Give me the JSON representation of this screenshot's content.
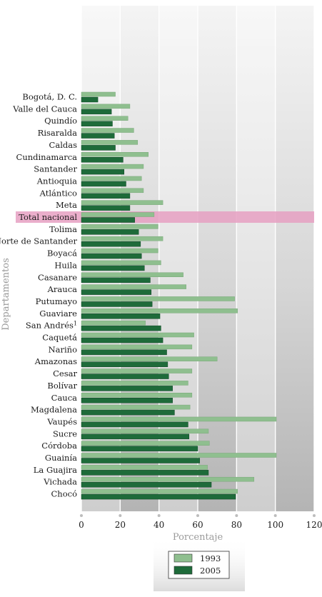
{
  "chart_data": {
    "type": "bar",
    "orientation": "horizontal",
    "categories": [
      "Bogotá, D. C.",
      "Valle del Cauca",
      "Quindío",
      "Risaralda",
      "Caldas",
      "Cundinamarca",
      "Santander",
      "Antioquia",
      "Atlántico",
      "Meta",
      "Total nacional",
      "Tolima",
      "Norte de Santander",
      "Boyacá",
      "Huila",
      "Casanare",
      "Arauca",
      "Putumayo",
      "Guaviare",
      "San Andrés",
      "Caquetá",
      "Nariño",
      "Amazonas",
      "Cesar",
      "Bolívar",
      "Cauca",
      "Magdalena",
      "Vaupés",
      "Sucre",
      "Córdoba",
      "Guainía",
      "La Guajira",
      "Vichada",
      "Chocó"
    ],
    "category_superscripts": {
      "San Andrés": "1"
    },
    "highlight_category": "Total nacional",
    "series": [
      {
        "name": "1993",
        "color": "#8fbf8f",
        "values": [
          17.5,
          25,
          24,
          27,
          29,
          34.5,
          32,
          31,
          32,
          42,
          37.5,
          39.5,
          42,
          39.5,
          41,
          52.5,
          54,
          79,
          80.5,
          33,
          58,
          57,
          70,
          57,
          55,
          57,
          56,
          100.5,
          65.5,
          66,
          100.5,
          65,
          89,
          80.5
        ]
      },
      {
        "name": "2005",
        "color": "#1e6b3a",
        "values": [
          8.5,
          15.5,
          16,
          17,
          17.5,
          21.5,
          22,
          23,
          25,
          25,
          27.5,
          29.5,
          30.5,
          31,
          32.5,
          35.5,
          36,
          36.5,
          40.5,
          41,
          42,
          44,
          44.5,
          45,
          47,
          47,
          48,
          55,
          55.5,
          60,
          61,
          65.5,
          67,
          79.5
        ]
      }
    ],
    "x_ticks": [
      "0",
      "20",
      "40",
      "60",
      "80",
      "100",
      "120"
    ],
    "xlim": [
      0,
      120
    ],
    "xlabel": "Porcentaje",
    "ylabel": "Departamentos",
    "grid": "vertical",
    "legend_position": "bottom-center",
    "colors": {
      "highlight": "#e6a0c2",
      "plot_band_light": "#f2f2f2",
      "plot_band_dark": "#cfcfcf"
    }
  }
}
